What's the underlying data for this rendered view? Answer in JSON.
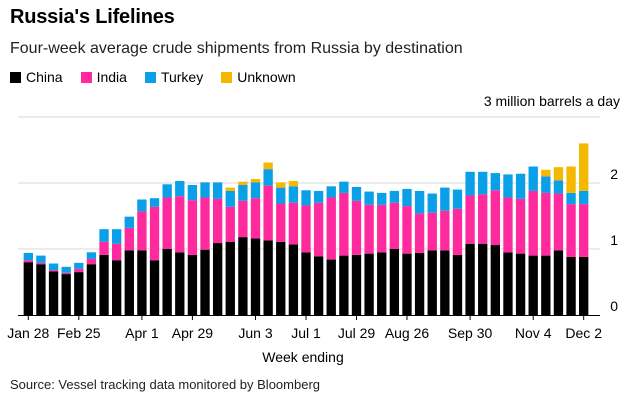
{
  "title": "Russia's Lifelines",
  "subtitle": "Four-week average crude shipments from Russia by destination",
  "source": "Source: Vessel tracking data monitored by Bloomberg",
  "colors": {
    "China": "#000000",
    "India": "#ff2b9e",
    "Turkey": "#0aa0e8",
    "Unknown": "#f5b800"
  },
  "chart_data": {
    "type": "bar",
    "stacked": true,
    "unit_label": "3 million barrels a day",
    "xlabel": "Week ending",
    "ylabel": "",
    "ylim": [
      0,
      3
    ],
    "yticks": [
      0,
      1,
      2
    ],
    "grid": true,
    "legend": "top-left",
    "x_tick_labels": [
      {
        "label": "Jan 28",
        "index": 0
      },
      {
        "label": "Feb 25",
        "index": 4
      },
      {
        "label": "Apr 1",
        "index": 9
      },
      {
        "label": "Apr 29",
        "index": 13
      },
      {
        "label": "Jun 3",
        "index": 18
      },
      {
        "label": "Jul 1",
        "index": 22
      },
      {
        "label": "Jul 29",
        "index": 26
      },
      {
        "label": "Aug 26",
        "index": 30
      },
      {
        "label": "Sep 30",
        "index": 35
      },
      {
        "label": "Nov 4",
        "index": 40
      },
      {
        "label": "Dec 2",
        "index": 44
      }
    ],
    "series": [
      {
        "name": "China",
        "values": [
          0.8,
          0.77,
          0.66,
          0.62,
          0.65,
          0.77,
          0.91,
          0.83,
          0.98,
          0.98,
          0.83,
          1.0,
          0.95,
          0.91,
          0.99,
          1.09,
          1.11,
          1.18,
          1.16,
          1.13,
          1.11,
          1.07,
          0.95,
          0.89,
          0.84,
          0.9,
          0.91,
          0.93,
          0.95,
          1.0,
          0.93,
          0.94,
          0.98,
          0.98,
          0.91,
          1.08,
          1.08,
          1.06,
          0.95,
          0.93,
          0.9,
          0.9,
          0.98,
          0.88,
          0.88
        ]
      },
      {
        "name": "India",
        "values": [
          0.03,
          0.02,
          0.02,
          0.02,
          0.05,
          0.08,
          0.2,
          0.25,
          0.34,
          0.59,
          0.81,
          0.78,
          0.85,
          0.83,
          0.79,
          0.67,
          0.53,
          0.55,
          0.61,
          0.83,
          0.58,
          0.63,
          0.71,
          0.81,
          0.94,
          0.95,
          0.82,
          0.74,
          0.72,
          0.7,
          0.72,
          0.6,
          0.57,
          0.6,
          0.7,
          0.73,
          0.75,
          0.83,
          0.83,
          0.83,
          0.98,
          0.95,
          0.86,
          0.8,
          0.8
        ]
      },
      {
        "name": "Turkey",
        "values": [
          0.11,
          0.11,
          0.1,
          0.09,
          0.09,
          0.1,
          0.19,
          0.22,
          0.17,
          0.18,
          0.13,
          0.2,
          0.23,
          0.23,
          0.23,
          0.25,
          0.24,
          0.24,
          0.24,
          0.25,
          0.24,
          0.25,
          0.23,
          0.18,
          0.17,
          0.17,
          0.21,
          0.2,
          0.18,
          0.18,
          0.26,
          0.34,
          0.29,
          0.35,
          0.29,
          0.36,
          0.34,
          0.26,
          0.35,
          0.38,
          0.37,
          0.25,
          0.2,
          0.17,
          0.2
        ]
      },
      {
        "name": "Unknown",
        "values": [
          0,
          0,
          0,
          0,
          0,
          0,
          0,
          0,
          0,
          0,
          0,
          0,
          0,
          0,
          0,
          0,
          0.05,
          0.05,
          0.05,
          0.1,
          0.08,
          0.08,
          0,
          0,
          0,
          0,
          0,
          0,
          0,
          0,
          0,
          0,
          0,
          0,
          0,
          0,
          0,
          0,
          0,
          0,
          0,
          0.1,
          0.2,
          0.4,
          0.72
        ]
      }
    ]
  }
}
